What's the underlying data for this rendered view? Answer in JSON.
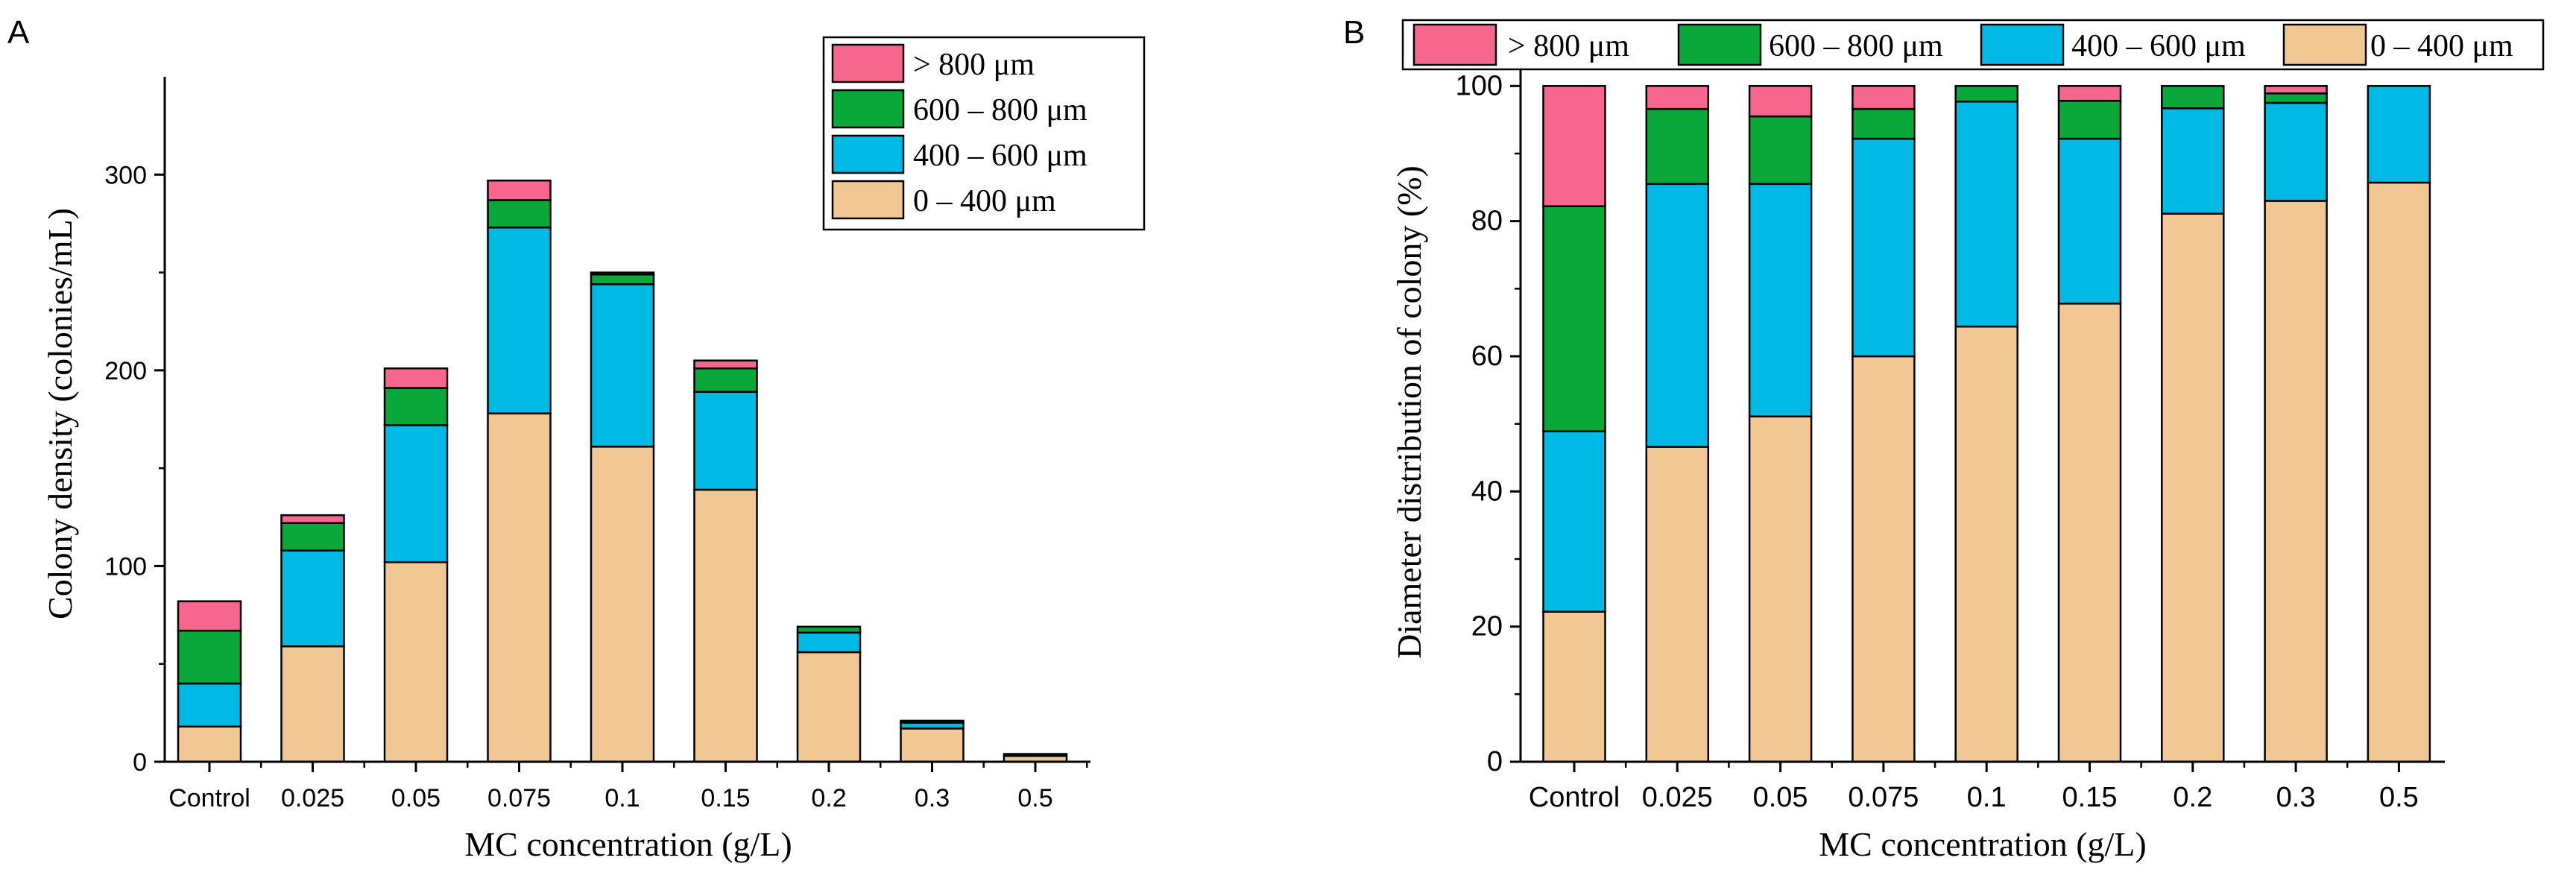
{
  "colors": {
    "0-400": "#f1c893",
    "400-600": "#00b9e4",
    "600-800": "#0aa83a",
    ">800": "#f7678d"
  },
  "chart_data": [
    {
      "panel_label": "A",
      "type": "bar",
      "stacked": true,
      "xlabel": "MC concentration (g/L)",
      "ylabel": "Colony density (colonies/mL)",
      "categories": [
        "Control",
        "0.025",
        "0.05",
        "0.075",
        "0.1",
        "0.15",
        "0.2",
        "0.3",
        "0.5"
      ],
      "ylim": [
        0,
        350
      ],
      "yticks": [
        "0",
        "100",
        "200",
        "300"
      ],
      "legend_position": "top-right",
      "legend": [
        "> 800 μm",
        "600 – 800 μm",
        "400 – 600 μm",
        "0 – 400 μm"
      ],
      "series": [
        {
          "key": "0-400",
          "name": "0 – 400 μm",
          "values": [
            18,
            59,
            102,
            178,
            161,
            139,
            56,
            17,
            3
          ]
        },
        {
          "key": "400-600",
          "name": "400 – 600 μm",
          "values": [
            22,
            49,
            70,
            95,
            83,
            50,
            10,
            3,
            1
          ]
        },
        {
          "key": "600-800",
          "name": "600 – 800 μm",
          "values": [
            27,
            14,
            19,
            14,
            5,
            12,
            3,
            1,
            0
          ]
        },
        {
          "key": ">800",
          "name": "> 800 μm",
          "values": [
            15,
            4,
            10,
            10,
            1,
            4,
            0,
            0,
            0
          ]
        }
      ]
    },
    {
      "panel_label": "B",
      "type": "bar",
      "stacked": true,
      "xlabel": "MC concentration (g/L)",
      "ylabel": "Diameter distribution of colony (%)",
      "categories": [
        "Control",
        "0.025",
        "0.05",
        "0.075",
        "0.1",
        "0.15",
        "0.2",
        "0.3",
        "0.5"
      ],
      "ylim": [
        0,
        105
      ],
      "yticks": [
        "0",
        "20",
        "40",
        "60",
        "80",
        "100"
      ],
      "legend_position": "top",
      "legend": [
        "> 800 μm",
        "600 – 800 μm",
        "400 – 600 μm",
        "0 – 400 μm"
      ],
      "series": [
        {
          "key": "0-400",
          "name": "0 – 400 μm",
          "values": [
            22.2,
            46.6,
            51.1,
            60.0,
            64.4,
            67.8,
            81.1,
            83.0,
            85.7
          ]
        },
        {
          "key": "400-600",
          "name": "400 – 600 μm",
          "values": [
            26.7,
            38.9,
            34.4,
            32.2,
            33.3,
            24.4,
            15.6,
            14.5,
            14.3
          ]
        },
        {
          "key": "600-800",
          "name": "600 – 800 μm",
          "values": [
            33.3,
            11.1,
            10.0,
            4.4,
            2.3,
            5.6,
            3.3,
            1.4,
            0
          ]
        },
        {
          "key": ">800",
          "name": "> 800 μm",
          "values": [
            17.8,
            3.4,
            4.5,
            3.4,
            0,
            2.2,
            0,
            1.1,
            0
          ]
        }
      ]
    }
  ]
}
